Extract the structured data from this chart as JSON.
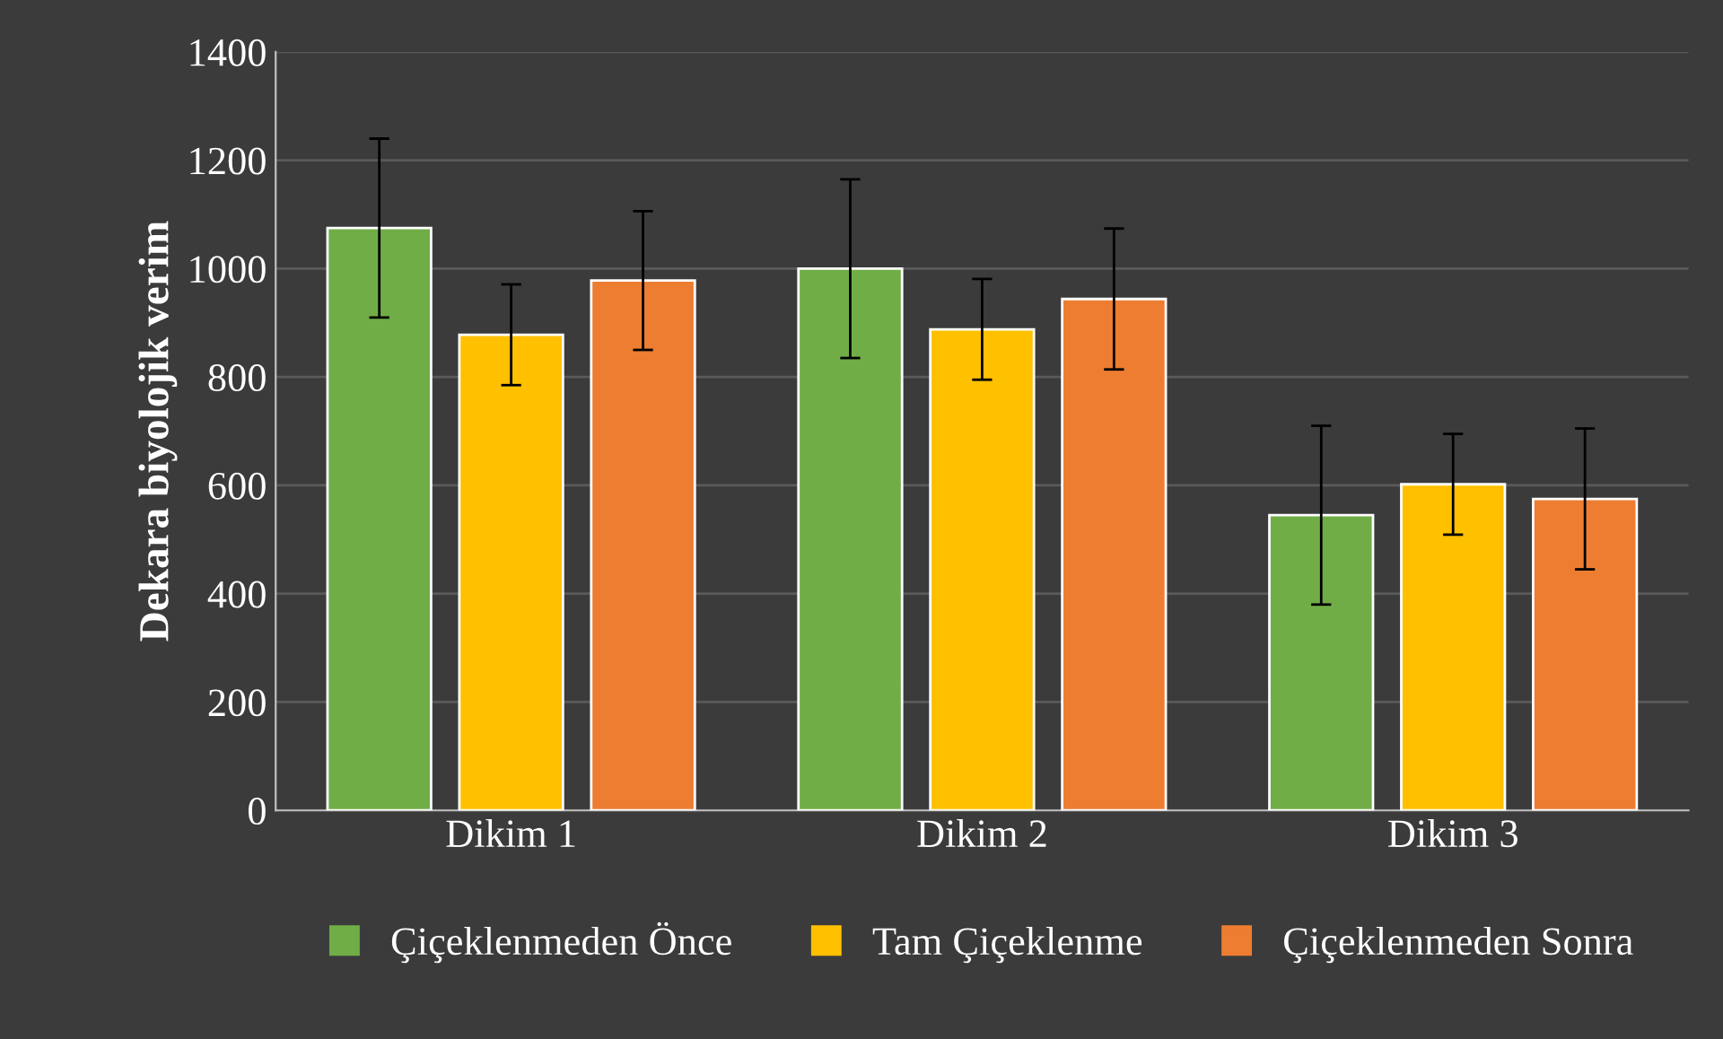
{
  "chart_data": {
    "type": "bar",
    "ylabel": "Dekara biyolojik verim",
    "categories": [
      "Dikim 1",
      "Dikim 2",
      "Dikim 3"
    ],
    "series": [
      {
        "name": "Çiçeklenmeden Önce",
        "color": "#70ad47",
        "values": [
          1075,
          1000,
          545
        ],
        "errors": [
          165,
          165,
          165
        ]
      },
      {
        "name": "Tam Çiçeklenme",
        "color": "#ffc000",
        "values": [
          878,
          888,
          602
        ],
        "errors": [
          93,
          93,
          93
        ]
      },
      {
        "name": "Çiçeklenmeden Sonra",
        "color": "#ed7d31",
        "values": [
          978,
          944,
          575
        ],
        "errors": [
          128,
          130,
          130
        ]
      }
    ],
    "ylim": [
      0,
      1400
    ],
    "yticks": [
      0,
      200,
      400,
      600,
      800,
      1000,
      1200,
      1400
    ],
    "grid": "y",
    "legend": "bottom"
  }
}
